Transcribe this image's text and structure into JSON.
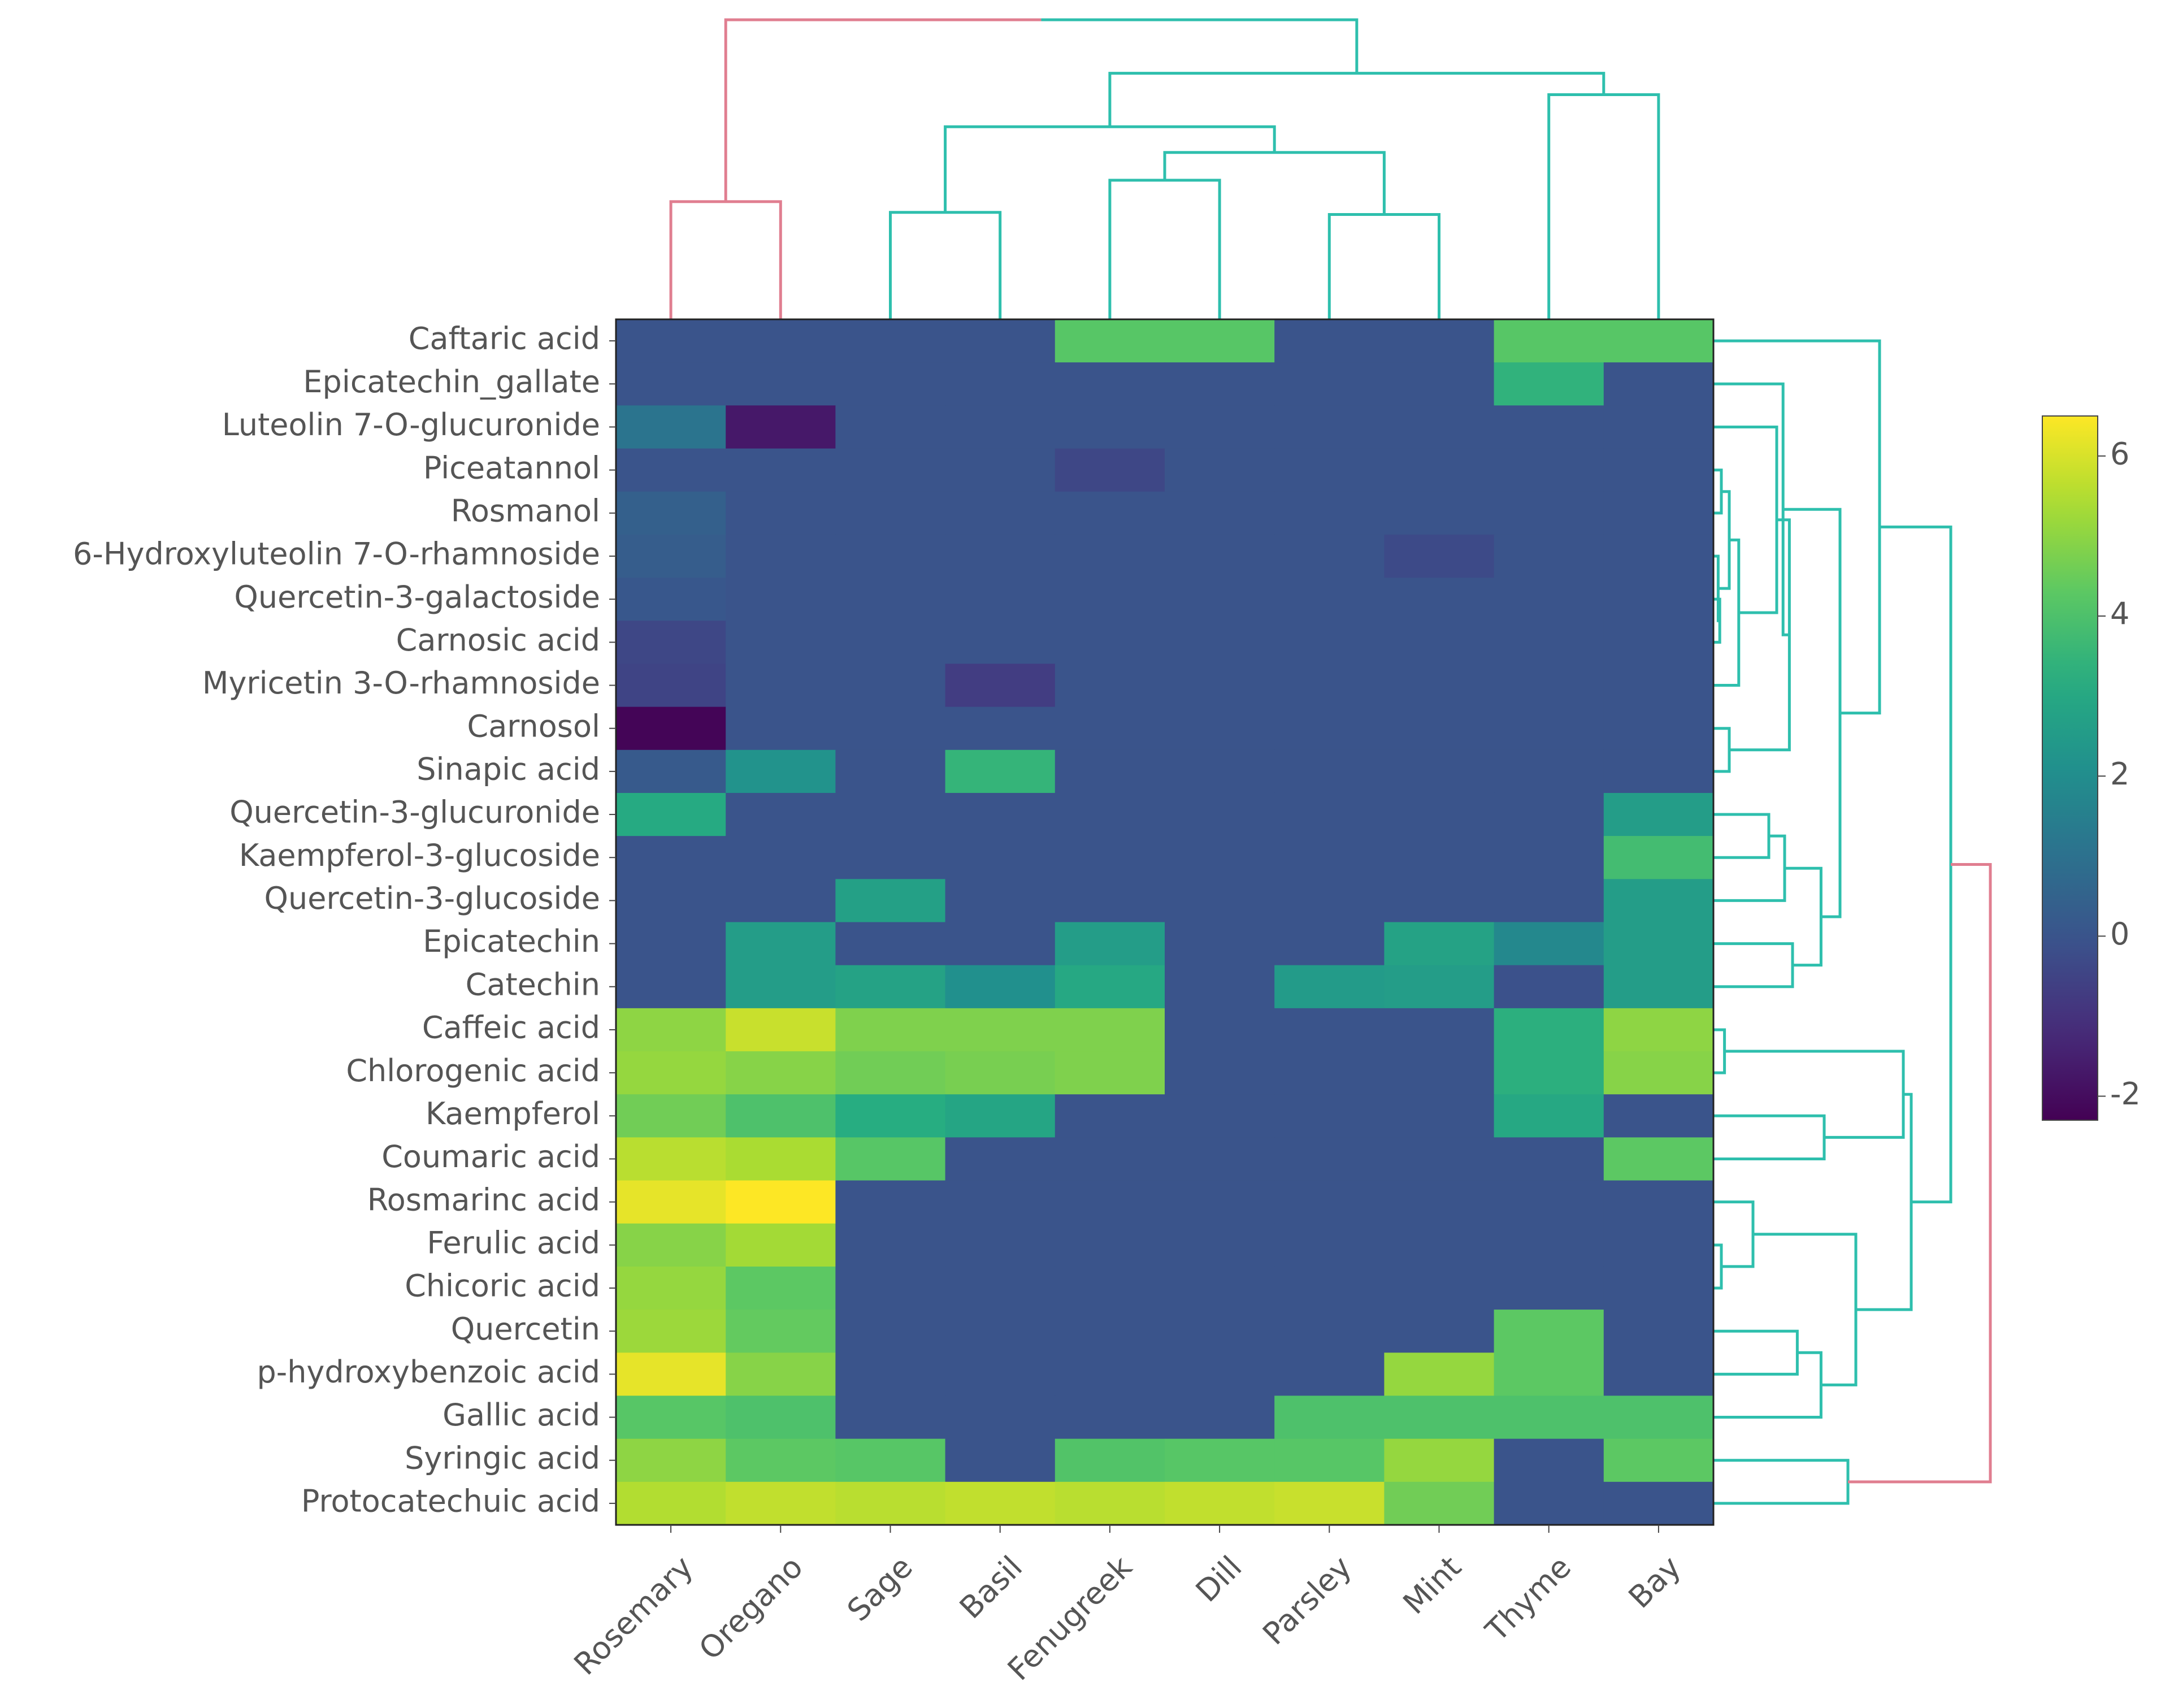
{
  "chart_data": {
    "type": "heatmap",
    "title": "",
    "xlabel": "",
    "ylabel": "",
    "columns": [
      "Rosemary",
      "Oregano",
      "Sage",
      "Basil",
      "Fenugreek",
      "Dill",
      "Parsley",
      "Mint",
      "Thyme",
      "Bay"
    ],
    "rows": [
      "Caftaric acid",
      "Epicatechin_gallate",
      "Luteolin 7-O-glucuronide",
      "Piceatannol",
      "Rosmanol",
      "6-Hydroxyluteolin 7-O-rhamnoside",
      "Quercetin-3-galactoside",
      "Carnosic acid",
      "Myricetin 3-O-rhamnoside",
      "Carnosol",
      "Sinapic acid",
      "Quercetin-3-glucuronide",
      "Kaempferol-3-glucoside",
      "Quercetin-3-glucoside",
      "Epicatechin",
      "Catechin",
      "Caffeic acid",
      "Chlorogenic acid",
      "Kaempferol",
      "Coumaric acid",
      "Rosmarinc acid",
      "Ferulic acid",
      "Chicoric acid",
      "Quercetin",
      "p-hydroxybenzoic acid",
      "Gallic acid",
      "Syringic acid",
      "Protocatechuic acid"
    ],
    "values": [
      [
        0,
        0,
        0,
        0,
        4.2,
        4.2,
        0,
        0,
        4.2,
        4.2
      ],
      [
        0,
        0,
        0,
        0,
        0,
        0,
        0,
        0,
        3.4,
        0
      ],
      [
        1.1,
        -1.7,
        0,
        0,
        0,
        0,
        0,
        0,
        0,
        0
      ],
      [
        0,
        0,
        0,
        0,
        -0.4,
        0,
        0,
        0,
        0,
        0
      ],
      [
        0.4,
        0,
        0,
        0,
        0,
        0,
        0,
        0,
        0,
        0
      ],
      [
        0.3,
        0,
        0,
        0,
        0,
        0,
        0,
        -0.3,
        0,
        0
      ],
      [
        0.1,
        0,
        0,
        0,
        0,
        0,
        0,
        0,
        0,
        0
      ],
      [
        -0.4,
        0,
        0,
        0,
        0,
        0,
        0,
        0,
        0,
        0
      ],
      [
        -0.5,
        0,
        0,
        -0.7,
        0,
        0,
        0,
        0,
        0,
        0
      ],
      [
        -2.2,
        0,
        0,
        0,
        0,
        0,
        0,
        0,
        0,
        0
      ],
      [
        0.2,
        2.2,
        0,
        3.5,
        0,
        0,
        0,
        0,
        0,
        0
      ],
      [
        3.1,
        0,
        0,
        0,
        0,
        0,
        0,
        0,
        0,
        2.6
      ],
      [
        0,
        0,
        0,
        0,
        0,
        0,
        0,
        0,
        0,
        3.8
      ],
      [
        0,
        0,
        2.7,
        0,
        0,
        0,
        0,
        0,
        0,
        2.6
      ],
      [
        0,
        2.6,
        0,
        0,
        2.6,
        0,
        0,
        2.8,
        1.8,
        2.6
      ],
      [
        0,
        2.6,
        2.8,
        2.1,
        3.0,
        0,
        2.5,
        2.6,
        -0.1,
        2.6
      ],
      [
        5.0,
        5.8,
        4.8,
        4.8,
        4.8,
        0,
        0,
        0,
        3.3,
        5.0
      ],
      [
        5.1,
        4.9,
        4.6,
        4.7,
        4.8,
        0,
        0,
        0,
        3.3,
        4.9
      ],
      [
        4.6,
        4.0,
        3.2,
        2.9,
        0,
        0,
        0,
        0,
        3.0,
        0
      ],
      [
        5.6,
        5.4,
        4.2,
        0,
        0,
        0,
        0,
        0,
        0,
        4.3
      ],
      [
        6.2,
        6.5,
        0,
        0,
        0,
        0,
        0,
        0,
        0,
        0
      ],
      [
        4.9,
        5.3,
        0,
        0,
        0,
        0,
        0,
        0,
        0,
        0
      ],
      [
        5.1,
        4.3,
        0,
        0,
        0,
        0,
        0,
        0,
        0,
        0
      ],
      [
        5.2,
        4.4,
        0,
        0,
        0,
        0,
        0,
        0,
        4.3,
        0
      ],
      [
        6.2,
        4.9,
        0,
        0,
        0,
        0,
        0,
        5.1,
        4.3,
        0
      ],
      [
        4.2,
        4.0,
        0,
        0,
        0,
        0,
        4.0,
        4.0,
        4.0,
        4.0
      ],
      [
        5.0,
        4.3,
        4.2,
        0,
        4.1,
        4.2,
        4.2,
        5.1,
        0,
        4.3
      ],
      [
        5.5,
        5.7,
        5.6,
        5.7,
        5.6,
        5.7,
        5.8,
        4.6,
        0,
        0
      ]
    ],
    "color_scale": {
      "name": "viridis",
      "range": [
        -2.3,
        6.5
      ],
      "ticks": [
        -2,
        0,
        2,
        4,
        6
      ],
      "tick_labels": [
        "-2",
        "0",
        "2",
        "4",
        "6"
      ]
    },
    "cluster_colors": {
      "primary": "#2ebfad",
      "secondary": "#e07e90"
    },
    "column_dendrogram": [
      {
        "a": "Rosemary",
        "b": "Oregano",
        "height": 0.55,
        "color": "secondary"
      },
      {
        "a": "Sage",
        "b": "Basil",
        "height": 0.5,
        "color": "primary"
      },
      {
        "a": "Fenugreek",
        "b": "Dill",
        "height": 0.65,
        "color": "primary"
      },
      {
        "a": "Parsley",
        "b": "Mint",
        "height": 0.49,
        "color": "primary"
      },
      {
        "a": 2,
        "b": 3,
        "height": 0.78,
        "color": "primary"
      },
      {
        "a": 1,
        "b": 4,
        "height": 0.9,
        "color": "primary"
      },
      {
        "a": "Thyme",
        "b": "Bay",
        "height": 1.05,
        "color": "primary"
      },
      {
        "a": 5,
        "b": 6,
        "height": 1.15,
        "color": "primary"
      },
      {
        "a": 0,
        "b": 7,
        "height": 1.4,
        "color": "mixed"
      }
    ],
    "row_dendrogram": [
      {
        "a": "Caffeic acid",
        "b": "Chlorogenic acid",
        "height": 0.07
      },
      {
        "a": "Ferulic acid",
        "b": "Chicoric acid",
        "height": 0.05
      },
      {
        "a": "Quercetin-3-galactoside",
        "b": "Carnosic acid",
        "height": 0.04
      },
      {
        "a": "Piceatannol",
        "b": "Rosmanol",
        "height": 0.05
      },
      {
        "a": "6-Hydroxyluteolin 7-O-rhamnoside",
        "b": 2,
        "height": 0.03
      },
      {
        "a": 3,
        "b": 4,
        "height": 0.1
      },
      {
        "a": "Myricetin 3-O-rhamnoside",
        "b": 5,
        "height": 0.16
      },
      {
        "a": "Luteolin 7-O-glucuronide",
        "b": 6,
        "height": 0.4
      },
      {
        "a": "Carnosol",
        "b": "Sinapic acid",
        "height": 0.1
      },
      {
        "a": 7,
        "b": 8,
        "height": 0.48
      },
      {
        "a": "Epicatechin_gallate",
        "b": 9,
        "height": 0.44
      },
      {
        "a": "Quercetin-3-glucuronide",
        "b": "Kaempferol-3-glucoside",
        "height": 0.35
      },
      {
        "a": "Quercetin-3-glucoside",
        "b": 11,
        "height": 0.45
      },
      {
        "a": "Epicatechin",
        "b": "Catechin",
        "height": 0.5
      },
      {
        "a": 12,
        "b": 13,
        "height": 0.68
      },
      {
        "a": 10,
        "b": 14,
        "height": 0.8
      },
      {
        "a": "Caftaric acid",
        "b": 15,
        "height": 1.05
      },
      {
        "a": "Kaempferol",
        "b": "Coumaric acid",
        "height": 0.7
      },
      {
        "a": 0,
        "b": 17,
        "height": 1.2
      },
      {
        "a": "Rosmarinc acid",
        "b": 1,
        "height": 0.25
      },
      {
        "a": "Quercetin",
        "b": "p-hydroxybenzoic acid",
        "height": 0.53
      },
      {
        "a": "Gallic acid",
        "b": 20,
        "height": 0.68
      },
      {
        "a": 19,
        "b": 21,
        "height": 0.9
      },
      {
        "a": 18,
        "b": 22,
        "height": 1.25
      },
      {
        "a": 16,
        "b": 23,
        "height": 1.5
      },
      {
        "a": "Syringic acid",
        "b": "Protocatechuic acid",
        "height": 0.85
      },
      {
        "a": 24,
        "b": 25,
        "height": 1.75,
        "color": "secondary"
      }
    ]
  }
}
